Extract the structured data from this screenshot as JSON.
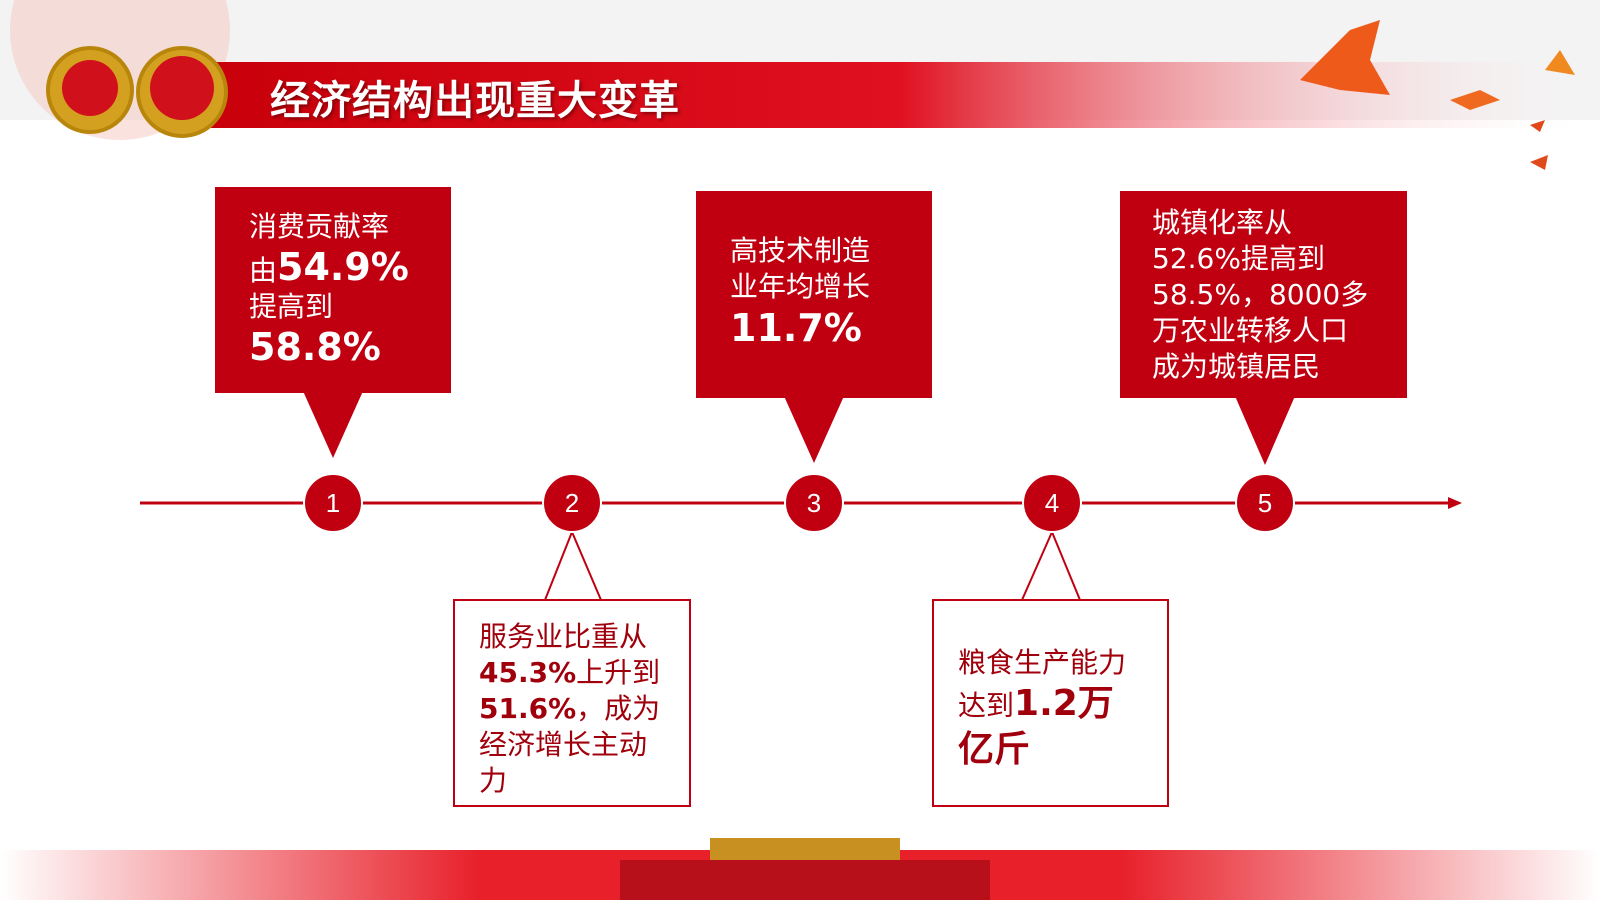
{
  "title": "经济结构出现重大变革",
  "items": [
    {
      "number": "1",
      "lines": [
        [
          {
            "text": "消费贡献率",
            "bold": false
          }
        ],
        [
          {
            "text": "由",
            "bold": false
          },
          {
            "text": "54.9%",
            "bold": true
          }
        ],
        [
          {
            "text": "提高到",
            "bold": false
          }
        ],
        [
          {
            "text": "58.8%",
            "bold": true
          }
        ]
      ]
    },
    {
      "number": "2",
      "lines": [
        [
          {
            "text": "服务业比重从",
            "bold": false
          }
        ],
        [
          {
            "text": "45.3%",
            "bold": true
          },
          {
            "text": "上升到",
            "bold": false
          }
        ],
        [
          {
            "text": "51.6%",
            "bold": true
          },
          {
            "text": "，成为",
            "bold": false
          }
        ],
        [
          {
            "text": "经济增长主动",
            "bold": false
          }
        ],
        [
          {
            "text": "力",
            "bold": false
          }
        ]
      ]
    },
    {
      "number": "3",
      "lines": [
        [
          {
            "text": "高技术制造",
            "bold": false
          }
        ],
        [
          {
            "text": "业年均增长",
            "bold": false
          }
        ],
        [
          {
            "text": "11.7%",
            "bold": true
          }
        ]
      ]
    },
    {
      "number": "4",
      "lines": [
        [
          {
            "text": "粮食生产能力",
            "bold": false
          }
        ],
        [
          {
            "text": "达到",
            "bold": false
          },
          {
            "text": "1.2万",
            "bold": true
          }
        ],
        [
          {
            "text": "亿斤",
            "bold": true
          }
        ]
      ]
    },
    {
      "number": "5",
      "lines": [
        [
          {
            "text": "城镇化率从",
            "bold": false
          }
        ],
        [
          {
            "text": "52.6%提高到",
            "bold": false
          }
        ],
        [
          {
            "text": "58.5%，8000多",
            "bold": false
          }
        ],
        [
          {
            "text": "万农业转移人口",
            "bold": false
          }
        ],
        [
          {
            "text": "成为城镇居民",
            "bold": false
          }
        ]
      ]
    }
  ]
}
